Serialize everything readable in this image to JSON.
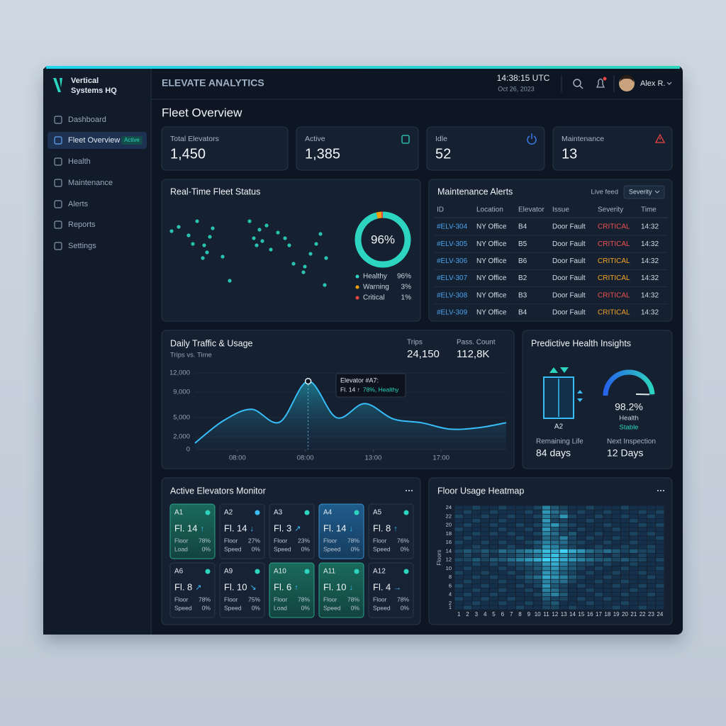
{
  "brand": {
    "lines": [
      "Vertical",
      "Systems HQ"
    ]
  },
  "nav": [
    {
      "label": "Dashboard"
    },
    {
      "label": "Fleet Overview",
      "badge": "Active"
    },
    {
      "label": "Health"
    },
    {
      "label": "Maintenance"
    },
    {
      "label": "Alerts"
    },
    {
      "label": "Reports"
    },
    {
      "label": "Settings"
    }
  ],
  "header": {
    "title": "ELEVATE ANALYTICS",
    "time": "14:38:15 UTC",
    "date": "Oct 26, 2023",
    "user": "Alex R."
  },
  "page_title": "Fleet Overview",
  "kpis": [
    {
      "label": "Total Elevators",
      "value": "1,450"
    },
    {
      "label": "Active",
      "value": "1,385"
    },
    {
      "label": "Idle",
      "value": "52"
    },
    {
      "label": "Maintenance",
      "value": "13"
    }
  ],
  "fleet_status": {
    "title": "Real-Time Fleet Status",
    "donut": {
      "center_label": "96%",
      "names": [
        "Healthy",
        "Warning",
        "Critical"
      ],
      "values": [
        96,
        3,
        1
      ],
      "value_labels": [
        "96%",
        "3%",
        "1%"
      ],
      "colors": [
        "#2dd4bf",
        "#f59e0b",
        "#ef4444"
      ]
    }
  },
  "alerts": {
    "title": "Maintenance Alerts",
    "live": "Live feed",
    "filter": "Severity",
    "columns": [
      "ID",
      "Location",
      "Elevator",
      "Issue",
      "Severity",
      "Time"
    ],
    "rows": [
      [
        "#ELV-304",
        "NY Office",
        "B4",
        "Door Fault",
        "CRITICAL",
        "14:32"
      ],
      [
        "#ELV-305",
        "NY Office",
        "B5",
        "Door Fault",
        "CRITICAL",
        "14:32"
      ],
      [
        "#ELV-306",
        "NY Office",
        "B6",
        "Door Fault",
        "CRITICAL",
        "14:32"
      ],
      [
        "#ELV-307",
        "NY Office",
        "B2",
        "Door Fault",
        "CRITICAL",
        "14:32"
      ],
      [
        "#ELV-308",
        "NY Office",
        "B3",
        "Door Fault",
        "CRITICAL",
        "14:32"
      ],
      [
        "#ELV-309",
        "NY Office",
        "B4",
        "Door Fault",
        "CRITICAL",
        "14:32"
      ]
    ],
    "severity_colors": [
      "#f05252",
      "#f05252",
      "#f5a524",
      "#f5a524",
      "#f05252",
      "#f5a524"
    ]
  },
  "traffic": {
    "title": "Daily Traffic & Usage",
    "subtitle": "Trips vs. Time",
    "stats": [
      {
        "label": "Trips",
        "value": "24,150"
      },
      {
        "label": "Pass. Count",
        "value": "112,8K"
      }
    ],
    "chart": {
      "type": "area",
      "color": "#38bdf8",
      "x": [
        0,
        1,
        2,
        3,
        4,
        5,
        6,
        7,
        8,
        9,
        10,
        11
      ],
      "values": [
        1000,
        4500,
        6300,
        4300,
        10700,
        5000,
        7200,
        4800,
        4200,
        3200,
        3400,
        4200
      ],
      "xlim": [
        0,
        11
      ],
      "ylim": [
        0,
        12000
      ],
      "yticks": [
        0,
        {
          "value": 2000,
          "label": "2,000"
        },
        {
          "value": 5000,
          "label": "5,000"
        },
        {
          "value": 9000,
          "label": "9,000"
        },
        {
          "value": 12000,
          "label": "12,000"
        }
      ],
      "xticks": [
        {
          "value": 1.5,
          "label": "08:00"
        },
        {
          "value": 3.9,
          "label": "08:00"
        },
        {
          "value": 6.3,
          "label": "13:00"
        },
        {
          "value": 8.7,
          "label": "17:00"
        }
      ]
    },
    "tooltip": {
      "line1": "Elevator #A7:",
      "line2": "Fl. 14 ↑",
      "line3": "78%, Healthy"
    }
  },
  "health": {
    "title": "Predictive Health Insights",
    "elevator": "A2",
    "gauge": {
      "value": 98.2,
      "label": "98.2%",
      "lim": [
        0,
        100
      ]
    },
    "gauge_caption": "Health",
    "status": "Stable",
    "remaining": {
      "label": "Remaining Life",
      "value": "84 days"
    },
    "inspection": {
      "label": "Next Inspection",
      "value": "12 Days"
    }
  },
  "monitor": {
    "title": "Active Elevators Monitor",
    "cards": [
      {
        "id": "A1",
        "floor": "Fl. 14",
        "arrow": "↑",
        "stats": [
          [
            "Floor",
            "78%"
          ],
          [
            "Load",
            "0%"
          ]
        ],
        "dot": "#2dd4bf",
        "style": "green"
      },
      {
        "id": "A2",
        "floor": "Fl. 14",
        "arrow": "↓",
        "stats": [
          [
            "Floor",
            "27%"
          ],
          [
            "Speed",
            "0%"
          ]
        ],
        "dot": "#38bdf8",
        "style": "default"
      },
      {
        "id": "A3",
        "floor": "Fl. 3",
        "arrow": "↗",
        "stats": [
          [
            "Floor",
            "23%"
          ],
          [
            "Speed",
            "0%"
          ]
        ],
        "dot": "#2dd4bf",
        "style": "default"
      },
      {
        "id": "A4",
        "floor": "Fl. 14",
        "arrow": "↓",
        "stats": [
          [
            "Floor",
            "78%"
          ],
          [
            "Speed",
            "0%"
          ]
        ],
        "dot": "#2dd4bf",
        "style": "blue"
      },
      {
        "id": "A5",
        "floor": "Fl. 8",
        "arrow": "↑",
        "stats": [
          [
            "Floor",
            "76%"
          ],
          [
            "Speed",
            "0%"
          ]
        ],
        "dot": "#2dd4bf",
        "style": "default"
      },
      {
        "id": "A6",
        "floor": "Fl. 8",
        "arrow": "↗",
        "stats": [
          [
            "Floor",
            "78%"
          ],
          [
            "Speed",
            "0%"
          ]
        ],
        "dot": "#2dd4bf",
        "style": "default"
      },
      {
        "id": "A9",
        "floor": "Fl. 10",
        "arrow": "↘",
        "stats": [
          [
            "Floor",
            "75%"
          ],
          [
            "Speed",
            "0%"
          ]
        ],
        "dot": "#2dd4bf",
        "style": "default"
      },
      {
        "id": "A10",
        "floor": "Fl. 6",
        "arrow": "↑",
        "stats": [
          [
            "Floor",
            "78%"
          ],
          [
            "Load",
            "0%"
          ]
        ],
        "dot": "#2dd4bf",
        "style": "green"
      },
      {
        "id": "A11",
        "floor": "Fl. 10",
        "arrow": "↓",
        "stats": [
          [
            "Floor",
            "78%"
          ],
          [
            "Speed",
            "0%"
          ]
        ],
        "dot": "#2dd4bf",
        "style": "green"
      },
      {
        "id": "A12",
        "floor": "Fl. 4",
        "arrow": "→",
        "stats": [
          [
            "Floor",
            "78%"
          ],
          [
            "Speed",
            "0%"
          ]
        ],
        "dot": "#2dd4bf",
        "style": "default"
      }
    ]
  },
  "heatmap": {
    "title": "Floor Usage Heatmap",
    "y_label": "Floors",
    "colors": [
      "#15304a",
      "#3fd3f7"
    ],
    "x": [
      1,
      2,
      3,
      4,
      5,
      6,
      7,
      8,
      9,
      10,
      11,
      12,
      13,
      14,
      15,
      16,
      17,
      18,
      19,
      20,
      21,
      22,
      23,
      24
    ],
    "y": [
      24,
      null,
      22,
      null,
      20,
      null,
      18,
      null,
      16,
      null,
      14,
      null,
      12,
      null,
      10,
      null,
      8,
      null,
      6,
      null,
      4,
      null,
      2,
      1
    ],
    "values": [
      [
        1,
        1,
        2,
        1,
        1,
        2,
        1,
        1,
        1,
        2,
        5,
        3,
        2,
        1,
        1,
        2,
        1,
        1,
        1,
        2,
        1,
        1,
        1,
        1
      ],
      [
        1,
        2,
        1,
        1,
        2,
        1,
        1,
        1,
        2,
        1,
        6,
        4,
        3,
        1,
        2,
        1,
        1,
        2,
        1,
        1,
        1,
        2,
        1,
        2
      ],
      [
        2,
        1,
        1,
        2,
        1,
        1,
        2,
        1,
        1,
        2,
        5,
        3,
        6,
        2,
        1,
        1,
        2,
        1,
        1,
        2,
        1,
        1,
        2,
        1
      ],
      [
        1,
        1,
        2,
        1,
        1,
        2,
        1,
        1,
        1,
        1,
        6,
        2,
        2,
        1,
        1,
        2,
        1,
        1,
        1,
        1,
        2,
        1,
        1,
        1
      ],
      [
        1,
        2,
        1,
        1,
        2,
        1,
        1,
        2,
        1,
        2,
        5,
        6,
        3,
        2,
        1,
        1,
        1,
        2,
        1,
        1,
        1,
        2,
        1,
        2
      ],
      [
        2,
        1,
        1,
        1,
        1,
        2,
        1,
        1,
        2,
        1,
        6,
        3,
        2,
        1,
        2,
        1,
        1,
        1,
        2,
        1,
        1,
        1,
        1,
        1
      ],
      [
        1,
        1,
        2,
        1,
        2,
        1,
        2,
        1,
        1,
        2,
        5,
        4,
        2,
        3,
        1,
        1,
        2,
        1,
        1,
        1,
        2,
        1,
        2,
        1
      ],
      [
        1,
        2,
        1,
        1,
        1,
        1,
        1,
        2,
        1,
        1,
        4,
        3,
        5,
        2,
        1,
        2,
        1,
        1,
        2,
        1,
        1,
        1,
        1,
        2
      ],
      [
        2,
        1,
        1,
        2,
        1,
        2,
        1,
        1,
        2,
        3,
        5,
        4,
        4,
        2,
        2,
        1,
        1,
        2,
        1,
        1,
        2,
        1,
        1,
        1
      ],
      [
        1,
        1,
        2,
        1,
        1,
        1,
        2,
        1,
        1,
        2,
        6,
        5,
        3,
        2,
        1,
        1,
        2,
        1,
        1,
        2,
        1,
        1,
        2,
        1
      ],
      [
        2,
        3,
        2,
        3,
        2,
        4,
        3,
        4,
        5,
        6,
        8,
        7,
        9,
        7,
        6,
        4,
        3,
        4,
        3,
        2,
        3,
        2,
        2,
        1
      ],
      [
        1,
        2,
        1,
        2,
        1,
        2,
        2,
        3,
        3,
        4,
        7,
        8,
        6,
        4,
        3,
        2,
        2,
        1,
        2,
        1,
        1,
        2,
        1,
        1
      ],
      [
        2,
        2,
        3,
        2,
        3,
        3,
        4,
        5,
        6,
        7,
        9,
        8,
        7,
        6,
        5,
        4,
        3,
        3,
        2,
        3,
        2,
        2,
        1,
        2
      ],
      [
        1,
        1,
        2,
        1,
        2,
        1,
        2,
        2,
        3,
        3,
        6,
        7,
        5,
        3,
        2,
        2,
        1,
        2,
        1,
        1,
        2,
        1,
        1,
        1
      ],
      [
        1,
        2,
        1,
        1,
        1,
        2,
        1,
        2,
        2,
        3,
        5,
        6,
        4,
        3,
        2,
        1,
        2,
        1,
        1,
        2,
        1,
        1,
        1,
        2
      ],
      [
        2,
        1,
        1,
        2,
        1,
        1,
        2,
        1,
        2,
        2,
        6,
        5,
        3,
        2,
        1,
        2,
        1,
        1,
        2,
        1,
        1,
        2,
        1,
        1
      ],
      [
        1,
        1,
        2,
        1,
        2,
        1,
        1,
        2,
        3,
        4,
        7,
        6,
        5,
        3,
        2,
        1,
        1,
        2,
        1,
        1,
        1,
        1,
        2,
        1
      ],
      [
        1,
        2,
        1,
        1,
        1,
        2,
        1,
        1,
        2,
        2,
        5,
        4,
        4,
        2,
        1,
        1,
        2,
        1,
        1,
        2,
        1,
        1,
        1,
        1
      ],
      [
        2,
        1,
        1,
        2,
        1,
        1,
        1,
        2,
        1,
        2,
        6,
        3,
        2,
        1,
        2,
        1,
        1,
        1,
        2,
        1,
        1,
        2,
        1,
        2
      ],
      [
        1,
        1,
        2,
        1,
        1,
        2,
        1,
        1,
        2,
        1,
        5,
        4,
        2,
        1,
        1,
        2,
        1,
        1,
        1,
        1,
        2,
        1,
        1,
        1
      ],
      [
        1,
        2,
        1,
        1,
        2,
        1,
        1,
        1,
        1,
        2,
        4,
        5,
        3,
        1,
        1,
        1,
        2,
        1,
        1,
        2,
        1,
        1,
        2,
        1
      ],
      [
        2,
        1,
        1,
        2,
        1,
        1,
        2,
        1,
        1,
        1,
        3,
        2,
        2,
        1,
        2,
        1,
        1,
        2,
        1,
        1,
        1,
        1,
        1,
        1
      ],
      [
        1,
        1,
        2,
        1,
        1,
        2,
        1,
        1,
        2,
        1,
        2,
        3,
        1,
        1,
        1,
        2,
        1,
        1,
        1,
        2,
        1,
        1,
        1,
        1
      ],
      [
        1,
        2,
        1,
        1,
        1,
        1,
        1,
        2,
        1,
        1,
        2,
        2,
        1,
        2,
        1,
        1,
        1,
        1,
        2,
        1,
        1,
        2,
        1,
        1
      ]
    ]
  }
}
